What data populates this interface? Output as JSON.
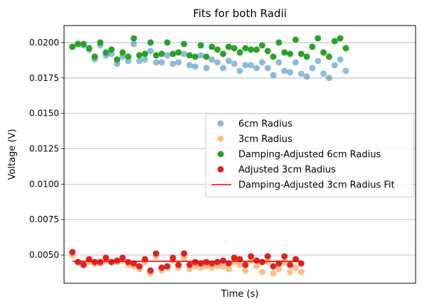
{
  "chart_data": {
    "type": "scatter",
    "title": "Fits for both Radii",
    "xlabel": "Time (s)",
    "ylabel": "Voltage (V)",
    "ylim": [
      0.003,
      0.0212
    ],
    "xlim": [
      -1.5,
      61.5
    ],
    "x_ticks_shown": false,
    "y_ticks": [
      "0.0050",
      "0.0075",
      "0.0100",
      "0.0125",
      "0.0150",
      "0.0175",
      "0.0200"
    ],
    "grid": "horizontal",
    "legend_position": "center-right",
    "series": [
      {
        "name": "6cm Radius",
        "kind": "scatter",
        "color": "#1f77b4",
        "opacity": 0.5,
        "x": [
          0,
          1,
          2,
          3,
          4,
          5,
          6,
          7,
          8,
          9,
          10,
          11,
          12,
          13,
          14,
          15,
          16,
          17,
          18,
          19,
          20,
          21,
          22,
          23,
          24,
          25,
          26,
          27,
          28,
          29,
          30,
          31,
          32,
          33,
          34,
          35,
          36,
          37,
          38,
          39,
          40,
          41,
          42,
          43,
          44,
          45,
          46,
          47,
          48,
          49
        ],
        "y": [
          0.0197,
          0.0199,
          0.0198,
          0.0195,
          0.0188,
          0.0198,
          0.0191,
          0.0192,
          0.0185,
          0.019,
          0.0187,
          0.0199,
          0.0187,
          0.0188,
          0.0194,
          0.0186,
          0.0186,
          0.0191,
          0.0185,
          0.0186,
          0.0192,
          0.0184,
          0.0183,
          0.0191,
          0.0182,
          0.0188,
          0.0186,
          0.0182,
          0.0187,
          0.0185,
          0.018,
          0.0184,
          0.0184,
          0.0182,
          0.0186,
          0.0182,
          0.0177,
          0.0186,
          0.018,
          0.0179,
          0.0186,
          0.0178,
          0.0176,
          0.0182,
          0.0187,
          0.0178,
          0.0175,
          0.0184,
          0.0188,
          0.018
        ]
      },
      {
        "name": "3cm Radius",
        "kind": "scatter",
        "color": "#ff7f0e",
        "opacity": 0.5,
        "x": [
          0,
          1,
          2,
          3,
          4,
          5,
          6,
          7,
          8,
          9,
          10,
          11,
          12,
          13,
          14,
          15,
          16,
          17,
          18,
          19,
          20,
          21,
          22,
          23,
          24,
          25,
          26,
          27,
          28,
          29,
          30,
          31,
          32,
          33,
          34,
          35,
          36,
          37,
          38,
          39,
          40,
          41
        ],
        "y": [
          0.005,
          0.0045,
          0.0044,
          0.0045,
          0.0044,
          0.0044,
          0.0046,
          0.0045,
          0.0045,
          0.0046,
          0.0043,
          0.0042,
          0.004,
          0.0045,
          0.0037,
          0.0049,
          0.0039,
          0.0041,
          0.0046,
          0.0041,
          0.0048,
          0.004,
          0.0042,
          0.0041,
          0.0042,
          0.0041,
          0.0042,
          0.0042,
          0.004,
          0.0045,
          0.0043,
          0.0039,
          0.0046,
          0.0042,
          0.0038,
          0.0045,
          0.0037,
          0.004,
          0.0045,
          0.0038,
          0.0041,
          0.0038
        ]
      },
      {
        "name": "Damping-Adjusted 6cm Radius",
        "kind": "scatter",
        "color": "#2ca02c",
        "opacity": 1,
        "x": [
          0,
          1,
          2,
          3,
          4,
          5,
          6,
          7,
          8,
          9,
          10,
          11,
          12,
          13,
          14,
          15,
          16,
          17,
          18,
          19,
          20,
          21,
          22,
          23,
          24,
          25,
          26,
          27,
          28,
          29,
          30,
          31,
          32,
          33,
          34,
          35,
          36,
          37,
          38,
          39,
          40,
          41,
          42,
          43,
          44,
          45,
          46,
          47,
          48,
          49
        ],
        "y": [
          0.0197,
          0.0199,
          0.0199,
          0.0196,
          0.019,
          0.02,
          0.0193,
          0.0195,
          0.0188,
          0.0193,
          0.019,
          0.0203,
          0.0191,
          0.0192,
          0.02,
          0.0191,
          0.0192,
          0.02,
          0.0192,
          0.0193,
          0.0199,
          0.0191,
          0.019,
          0.0198,
          0.019,
          0.0197,
          0.0195,
          0.0192,
          0.0197,
          0.0196,
          0.0193,
          0.0196,
          0.0195,
          0.0195,
          0.0198,
          0.0194,
          0.019,
          0.02,
          0.0193,
          0.0192,
          0.0202,
          0.0192,
          0.019,
          0.0197,
          0.0203,
          0.0193,
          0.019,
          0.0201,
          0.0203,
          0.0196
        ]
      },
      {
        "name": "Adjusted 3cm Radius",
        "kind": "scatter",
        "color": "#d62728",
        "opacity": 1,
        "x": [
          0,
          1,
          2,
          3,
          4,
          5,
          6,
          7,
          8,
          9,
          10,
          11,
          12,
          13,
          14,
          15,
          16,
          17,
          18,
          19,
          20,
          21,
          22,
          23,
          24,
          25,
          26,
          27,
          28,
          29,
          30,
          31,
          32,
          33,
          34,
          35,
          36,
          37,
          38,
          39,
          40,
          41
        ],
        "y": [
          0.0052,
          0.0045,
          0.0043,
          0.0047,
          0.0045,
          0.0045,
          0.0048,
          0.0045,
          0.0046,
          0.0048,
          0.0045,
          0.0044,
          0.0042,
          0.0047,
          0.0039,
          0.0051,
          0.0041,
          0.0042,
          0.0048,
          0.0043,
          0.0051,
          0.0043,
          0.0045,
          0.0044,
          0.0045,
          0.0044,
          0.0045,
          0.0046,
          0.0044,
          0.0048,
          0.0047,
          0.0043,
          0.0049,
          0.0046,
          0.0045,
          0.0049,
          0.0042,
          0.0044,
          0.0049,
          0.0043,
          0.0047,
          0.0044
        ]
      },
      {
        "name": "Damping-Adjusted 3cm Radius Fit",
        "kind": "line",
        "color": "#ff0000",
        "x": [
          0,
          41
        ],
        "y": [
          0.00455,
          0.00455
        ]
      }
    ]
  }
}
